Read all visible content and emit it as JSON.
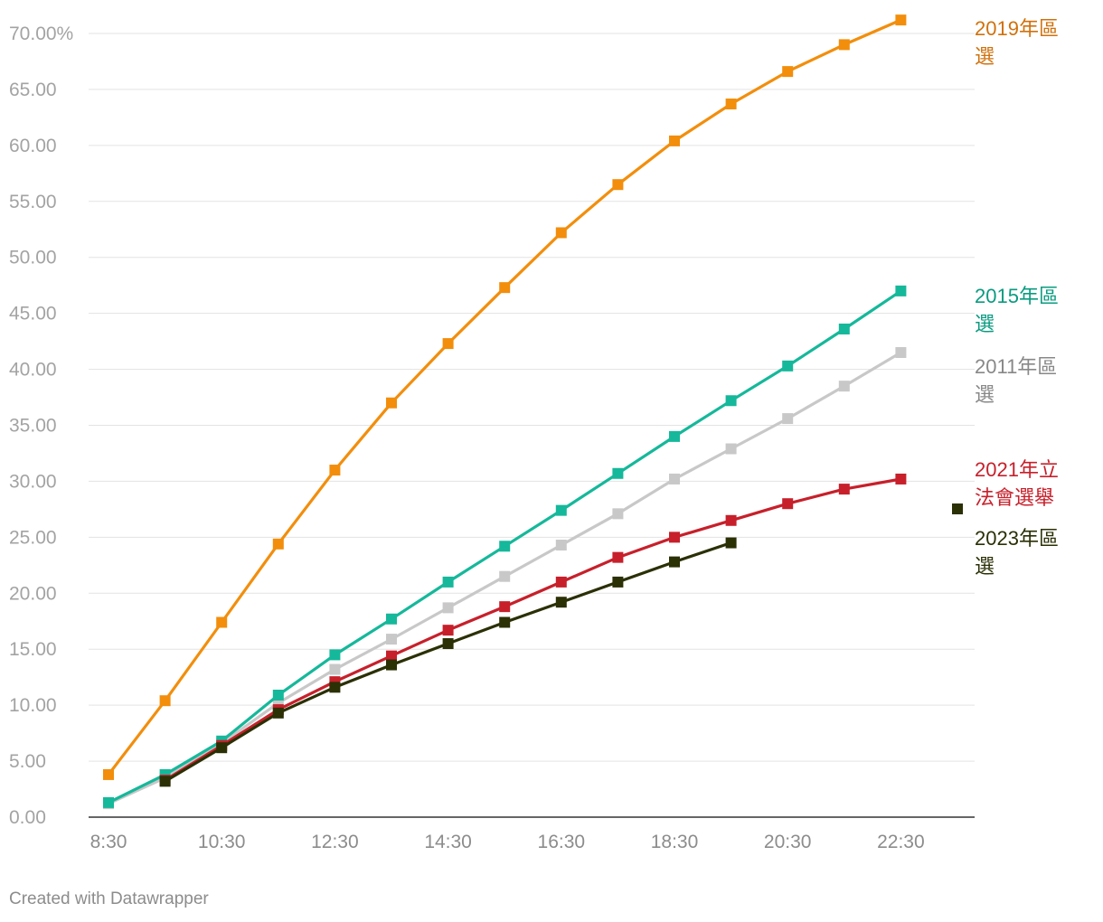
{
  "chart_data": {
    "type": "line",
    "title": "",
    "xlabel": "",
    "ylabel": "",
    "x": [
      "8:30",
      "9:30",
      "10:30",
      "11:30",
      "12:30",
      "13:30",
      "14:30",
      "15:30",
      "16:30",
      "17:30",
      "18:30",
      "19:30",
      "20:30",
      "21:30",
      "22:30"
    ],
    "x_tick_labels": [
      "8:30",
      "10:30",
      "12:30",
      "14:30",
      "16:30",
      "18:30",
      "20:30",
      "22:30"
    ],
    "y_tick_labels": [
      "70.00%",
      "65.00",
      "60.00",
      "55.00",
      "50.00",
      "45.00",
      "40.00",
      "35.00",
      "30.00",
      "25.00",
      "20.00",
      "15.00",
      "10.00",
      "5.00",
      "0.00"
    ],
    "ylim": [
      0,
      70
    ],
    "grid": true,
    "series": [
      {
        "name": "2011年區選",
        "color": "#c8c8c8",
        "label_color": "#888888",
        "values": [
          1.2,
          3.5,
          6.6,
          10.2,
          13.2,
          15.9,
          18.7,
          21.5,
          24.3,
          27.1,
          30.2,
          32.9,
          35.6,
          38.5,
          41.5
        ]
      },
      {
        "name": "2015年區選",
        "color": "#15b89a",
        "label_color": "#0a9b80",
        "values": [
          1.3,
          3.8,
          6.8,
          10.9,
          14.5,
          17.7,
          21.0,
          24.2,
          27.4,
          30.7,
          34.0,
          37.2,
          40.3,
          43.6,
          47.0
        ]
      },
      {
        "name": "2019年區選",
        "color": "#f28e0c",
        "label_color": "#d0710c",
        "values": [
          3.8,
          10.4,
          17.4,
          24.4,
          31.0,
          37.0,
          42.3,
          47.3,
          52.2,
          56.5,
          60.4,
          63.7,
          66.6,
          69.0,
          71.2
        ]
      },
      {
        "name": "2021年立法會選舉",
        "color": "#c7202b",
        "label_color": "#c7202b",
        "values": [
          null,
          3.3,
          6.4,
          9.6,
          12.1,
          14.4,
          16.7,
          18.8,
          21.0,
          23.2,
          25.0,
          26.5,
          28.0,
          29.3,
          30.2
        ]
      },
      {
        "name": "2023年區選",
        "color": "#2b3005",
        "label_color": "#2b3005",
        "values": [
          null,
          3.2,
          6.2,
          9.3,
          11.6,
          13.6,
          15.5,
          17.4,
          19.2,
          21.0,
          22.8,
          24.5,
          null,
          null,
          null
        ]
      }
    ]
  },
  "footer": {
    "credit": "Created with Datawrapper"
  }
}
